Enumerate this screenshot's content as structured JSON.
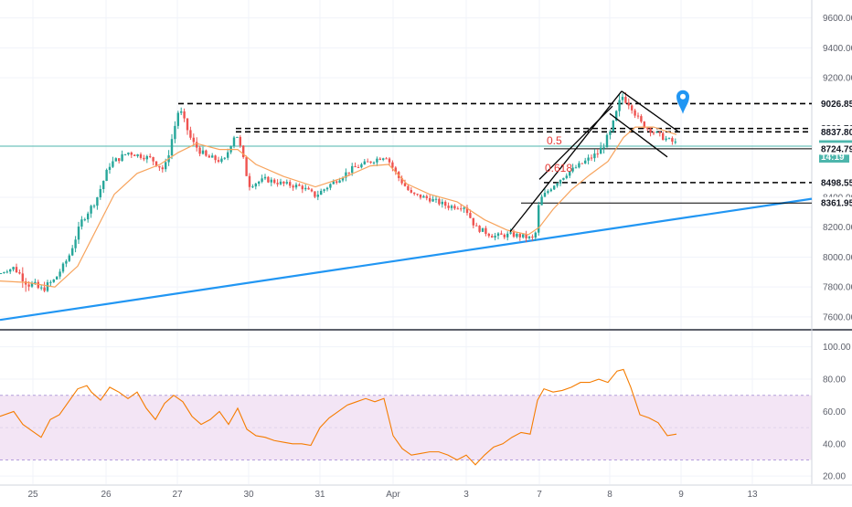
{
  "colors": {
    "up": "#26a69a",
    "down": "#ef5350",
    "ma": "#f7a35c",
    "trendline": "#2196f3",
    "rsi": "#f57c00",
    "rsi_band": "#f3e5f5",
    "channel": "#000000",
    "price_line": "#4db6ac",
    "fib_label": "#e53935",
    "marker": "#2196f3"
  },
  "chart_data": [
    {
      "type": "candlestick",
      "ylim": [
        7520,
        9720
      ],
      "ticks": [
        {
          "v": 9600,
          "label": "9600.00"
        },
        {
          "v": 9400,
          "label": "9400.00"
        },
        {
          "v": 9200,
          "label": "9200.00"
        },
        {
          "v": 8400,
          "label": "8400.00"
        },
        {
          "v": 8200,
          "label": "8200.00"
        },
        {
          "v": 8000,
          "label": "8000.00"
        },
        {
          "v": 7800,
          "label": "7800.00"
        },
        {
          "v": 7600,
          "label": "7600.00"
        }
      ],
      "xlim": [
        0,
        888
      ],
      "x_labels": [
        {
          "x": 36,
          "label": "25"
        },
        {
          "x": 116,
          "label": "26"
        },
        {
          "x": 194,
          "label": "27"
        },
        {
          "x": 272,
          "label": "30"
        },
        {
          "x": 350,
          "label": "31"
        },
        {
          "x": 430,
          "label": "Apr"
        },
        {
          "x": 510,
          "label": "3"
        },
        {
          "x": 590,
          "label": "7"
        },
        {
          "x": 667,
          "label": "8"
        },
        {
          "x": 745,
          "label": "9"
        },
        {
          "x": 823,
          "label": "13"
        }
      ],
      "anchors": [
        [
          0,
          7890,
          0
        ],
        [
          15,
          7930,
          3
        ],
        [
          30,
          7830,
          6
        ],
        [
          45,
          7780,
          5
        ],
        [
          60,
          7850,
          3
        ],
        [
          75,
          8000,
          3
        ],
        [
          90,
          8250,
          4
        ],
        [
          105,
          8380,
          3
        ],
        [
          120,
          8620,
          4
        ],
        [
          140,
          8700,
          3
        ],
        [
          165,
          8660,
          3
        ],
        [
          180,
          8580,
          5
        ],
        [
          196,
          9000,
          3
        ],
        [
          210,
          8770,
          4
        ],
        [
          225,
          8670,
          4
        ],
        [
          245,
          8640,
          3
        ],
        [
          258,
          8840,
          3
        ],
        [
          265,
          8690,
          3
        ],
        [
          272,
          8480,
          3
        ],
        [
          290,
          8520,
          3
        ],
        [
          310,
          8490,
          3
        ],
        [
          330,
          8470,
          3
        ],
        [
          345,
          8410,
          3
        ],
        [
          360,
          8480,
          3
        ],
        [
          385,
          8590,
          3
        ],
        [
          405,
          8640,
          3
        ],
        [
          422,
          8680,
          3
        ],
        [
          435,
          8540,
          3
        ],
        [
          450,
          8420,
          3
        ],
        [
          470,
          8390,
          3
        ],
        [
          490,
          8340,
          3
        ],
        [
          508,
          8340,
          3
        ],
        [
          520,
          8200,
          3
        ],
        [
          540,
          8140,
          3
        ],
        [
          560,
          8150,
          3
        ],
        [
          570,
          8140,
          3
        ],
        [
          585,
          8120,
          3
        ],
        [
          590,
          8380,
          3
        ],
        [
          605,
          8480,
          3
        ],
        [
          620,
          8560,
          3
        ],
        [
          640,
          8640,
          3
        ],
        [
          655,
          8700,
          4
        ],
        [
          668,
          8830,
          5
        ],
        [
          680,
          9080,
          5
        ],
        [
          690,
          9020,
          4
        ],
        [
          700,
          8900,
          4
        ],
        [
          712,
          8850,
          3
        ],
        [
          725,
          8800,
          3
        ],
        [
          740,
          8760,
          3
        ]
      ],
      "moving_average": [
        [
          0,
          7840
        ],
        [
          30,
          7830
        ],
        [
          60,
          7800
        ],
        [
          85,
          7940
        ],
        [
          105,
          8180
        ],
        [
          125,
          8420
        ],
        [
          150,
          8560
        ],
        [
          175,
          8620
        ],
        [
          195,
          8700
        ],
        [
          215,
          8760
        ],
        [
          240,
          8720
        ],
        [
          260,
          8720
        ],
        [
          280,
          8620
        ],
        [
          310,
          8540
        ],
        [
          345,
          8470
        ],
        [
          375,
          8530
        ],
        [
          405,
          8610
        ],
        [
          425,
          8620
        ],
        [
          445,
          8490
        ],
        [
          470,
          8420
        ],
        [
          500,
          8370
        ],
        [
          530,
          8250
        ],
        [
          555,
          8180
        ],
        [
          578,
          8150
        ],
        [
          590,
          8200
        ],
        [
          605,
          8320
        ],
        [
          625,
          8450
        ],
        [
          645,
          8550
        ],
        [
          665,
          8640
        ],
        [
          682,
          8800
        ],
        [
          695,
          8870
        ],
        [
          715,
          8870
        ],
        [
          740,
          8820
        ]
      ],
      "right_labels": [
        {
          "label": "9026.85",
          "v": 9026.85
        },
        {
          "label": "8860.70",
          "v": 8860.7
        },
        {
          "label": "8837.80",
          "v": 8837.8
        },
        {
          "label": "8742.10",
          "v": 8742.1,
          "highlight": true
        },
        {
          "label": "14:19",
          "v": 8672,
          "highlight": true
        },
        {
          "label": "8724.79",
          "v": 8724.79
        },
        {
          "label": "8498.55",
          "v": 8498.55
        },
        {
          "label": "8361.95",
          "v": 8361.95
        }
      ],
      "fib_labels": [
        {
          "label": "0.5",
          "x": 598,
          "v": 8778
        },
        {
          "label": "0.618",
          "x": 596,
          "v": 8595
        }
      ],
      "trendline": [
        [
          0,
          7580
        ],
        [
          888,
          8390
        ]
      ],
      "levels": [
        {
          "v": 9026.85,
          "x0": 195,
          "x1": 888,
          "dashed": true
        },
        {
          "v": 8860.7,
          "x0": 258,
          "x1": 888,
          "dashed": true
        },
        {
          "v": 8837.8,
          "x0": 258,
          "x1": 888,
          "dashed": true
        },
        {
          "v": 8724.79,
          "x0": 595,
          "x1": 888,
          "dashed": false
        },
        {
          "v": 8498.55,
          "x0": 595,
          "x1": 888,
          "dashed": true
        },
        {
          "v": 8361.95,
          "x0": 570,
          "x1": 888,
          "dashed": false
        }
      ],
      "channel_lines": [
        [
          [
            558,
            8170
          ],
          [
            680,
            9110
          ]
        ],
        [
          [
            590,
            8520
          ],
          [
            670,
            9010
          ]
        ],
        [
          [
            680,
            9110
          ],
          [
            742,
            8840
          ]
        ],
        [
          [
            667,
            8960
          ],
          [
            730,
            8670
          ]
        ]
      ],
      "marker_x": 747,
      "marker_v": 9080
    },
    {
      "type": "line",
      "ylim": [
        15,
        110
      ],
      "ticks": [
        {
          "v": 100,
          "label": "100.00"
        },
        {
          "v": 80,
          "label": "80.00"
        },
        {
          "v": 60,
          "label": "60.00"
        },
        {
          "v": 40,
          "label": "40.00"
        },
        {
          "v": 20,
          "label": "20.00"
        }
      ],
      "band": [
        30,
        70
      ],
      "values": [
        [
          0,
          57
        ],
        [
          15,
          60
        ],
        [
          25,
          52
        ],
        [
          35,
          48
        ],
        [
          45,
          44
        ],
        [
          55,
          55
        ],
        [
          65,
          58
        ],
        [
          75,
          66
        ],
        [
          85,
          74
        ],
        [
          95,
          76
        ],
        [
          100,
          72
        ],
        [
          110,
          67
        ],
        [
          120,
          75
        ],
        [
          130,
          72
        ],
        [
          140,
          68
        ],
        [
          150,
          72
        ],
        [
          160,
          62
        ],
        [
          170,
          55
        ],
        [
          180,
          65
        ],
        [
          190,
          70
        ],
        [
          200,
          66
        ],
        [
          210,
          57
        ],
        [
          220,
          52
        ],
        [
          230,
          55
        ],
        [
          240,
          60
        ],
        [
          250,
          52
        ],
        [
          260,
          62
        ],
        [
          270,
          49
        ],
        [
          280,
          45
        ],
        [
          290,
          44
        ],
        [
          300,
          42
        ],
        [
          310,
          41
        ],
        [
          320,
          40
        ],
        [
          330,
          40
        ],
        [
          340,
          39
        ],
        [
          350,
          50
        ],
        [
          360,
          56
        ],
        [
          370,
          60
        ],
        [
          380,
          64
        ],
        [
          390,
          66
        ],
        [
          400,
          68
        ],
        [
          410,
          66
        ],
        [
          420,
          68
        ],
        [
          430,
          45
        ],
        [
          440,
          37
        ],
        [
          450,
          33
        ],
        [
          460,
          34
        ],
        [
          470,
          35
        ],
        [
          480,
          35
        ],
        [
          490,
          33
        ],
        [
          500,
          30
        ],
        [
          510,
          33
        ],
        [
          520,
          27
        ],
        [
          530,
          33
        ],
        [
          540,
          38
        ],
        [
          550,
          40
        ],
        [
          560,
          44
        ],
        [
          570,
          47
        ],
        [
          580,
          46
        ],
        [
          588,
          67
        ],
        [
          595,
          74
        ],
        [
          605,
          72
        ],
        [
          615,
          73
        ],
        [
          625,
          75
        ],
        [
          635,
          78
        ],
        [
          645,
          78
        ],
        [
          655,
          80
        ],
        [
          665,
          78
        ],
        [
          675,
          85
        ],
        [
          682,
          86
        ],
        [
          690,
          75
        ],
        [
          700,
          58
        ],
        [
          710,
          56
        ],
        [
          720,
          53
        ],
        [
          730,
          45
        ],
        [
          740,
          46
        ]
      ]
    }
  ]
}
